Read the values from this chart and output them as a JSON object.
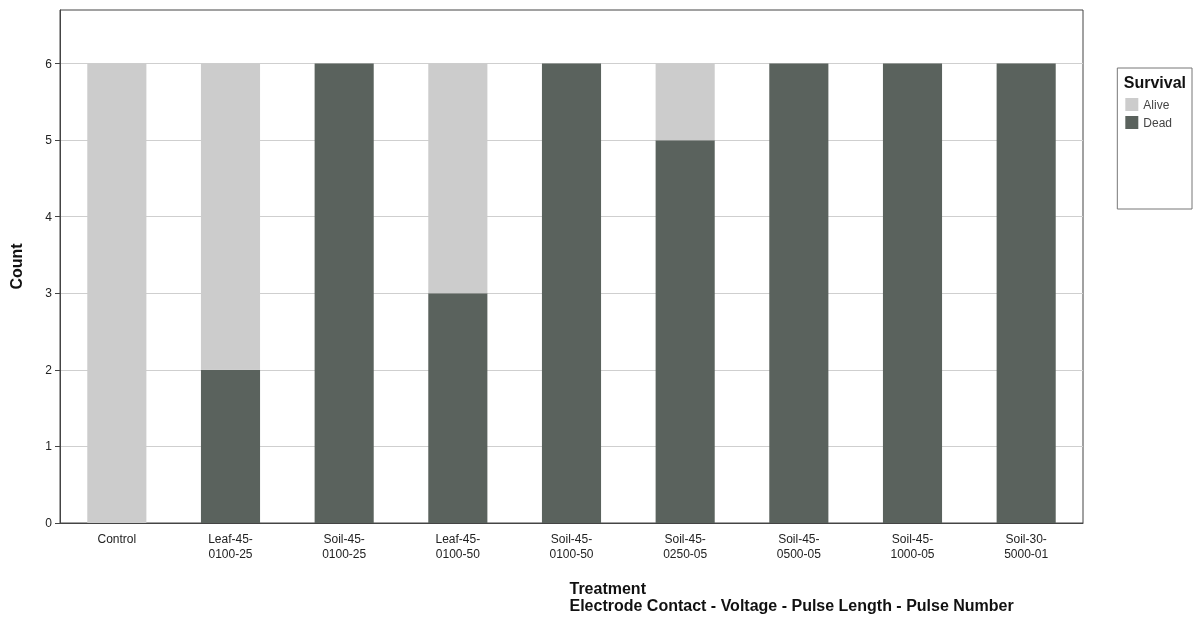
{
  "chart_data": {
    "type": "bar",
    "stacked": true,
    "xlabel": "Treatment\nElectrode Contact - Voltage - Pulse Length - Pulse Number",
    "ylabel": "Count",
    "legend_title": "Survival",
    "legend": "top right",
    "categories": [
      "Control",
      "Leaf-45-0100-25",
      "Soil-45-0100-25",
      "Leaf-45-0100-50",
      "Soil-45-0100-50",
      "Soil-45-0250-05",
      "Soil-45-0500-05",
      "Soil-45-1000-05",
      "Soil-30-5000-01"
    ],
    "series": [
      {
        "name": "Dead",
        "color": "#5a625d",
        "values": [
          0,
          2,
          6,
          3,
          6,
          5,
          6,
          6,
          6
        ]
      },
      {
        "name": "Alive",
        "color": "#cccccc",
        "values": [
          6,
          4,
          0,
          3,
          0,
          1,
          0,
          0,
          0
        ]
      }
    ],
    "ylim": [
      0,
      6.7
    ],
    "yticks": [
      0,
      1,
      2,
      3,
      4,
      5,
      6
    ],
    "grid": "y"
  }
}
